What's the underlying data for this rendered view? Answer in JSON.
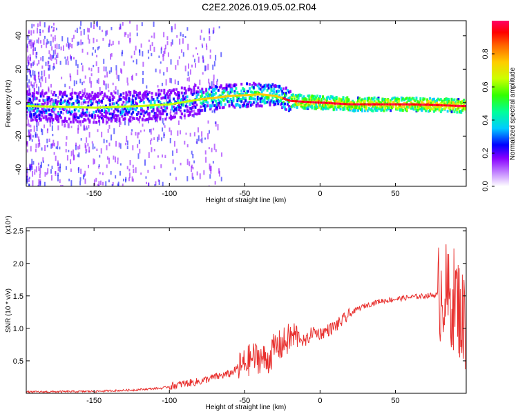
{
  "title": "C2E2.2026.019.05.02.R04",
  "colors": {
    "signal": "#e8302e",
    "axis": "#000000",
    "colormap": [
      "#cc99ff",
      "#8800ff",
      "#0000ff",
      "#00ccff",
      "#00ff99",
      "#33ff00",
      "#ccff00",
      "#ffcc00",
      "#ff6600",
      "#ff0000",
      "#ff0055"
    ]
  },
  "chart_data": [
    {
      "type": "heatmap",
      "xlabel": "Height of straight line (km)",
      "ylabel": "Frequency (Hz)",
      "xlim": [
        -195,
        97
      ],
      "ylim": [
        -50,
        49
      ],
      "xticks": [
        -150,
        -100,
        -50,
        0,
        50
      ],
      "yticks": [
        -40,
        -20,
        0,
        20,
        40
      ],
      "colorbar": {
        "label": "Normalized spectral amplitude",
        "range": [
          0.0,
          1.0
        ],
        "ticks": [
          "0.0",
          "0.2",
          "0.4",
          "0.6",
          "0.8"
        ]
      },
      "ridge": [
        [
          -195,
          -2
        ],
        [
          -150,
          -3
        ],
        [
          -120,
          -2
        ],
        [
          -100,
          -1
        ],
        [
          -80,
          2
        ],
        [
          -60,
          4
        ],
        [
          -40,
          5
        ],
        [
          -30,
          4
        ],
        [
          -20,
          1
        ],
        [
          0,
          0
        ],
        [
          20,
          -1
        ],
        [
          60,
          -1
        ],
        [
          95,
          -2
        ]
      ]
    },
    {
      "type": "line",
      "xlabel": "Height of straight line (km)",
      "ylabel": "SNR (10 * v/v)",
      "multiplier": "(x10⁴)",
      "xlim": [
        -195,
        97
      ],
      "ylim": [
        0,
        2.55
      ],
      "xticks": [
        -150,
        -100,
        -50,
        0,
        50
      ],
      "yticks": [
        "0.5",
        "1.0",
        "1.5",
        "2.0",
        "2.5"
      ],
      "series": [
        {
          "x": [
            -195,
            -150,
            -125,
            -105,
            -90,
            -80,
            -70,
            -60,
            -50,
            -45,
            -40,
            -35,
            -30,
            -25,
            -20,
            -15,
            -10,
            -5,
            0,
            5,
            10,
            15,
            20,
            25,
            30,
            40,
            50,
            60,
            70,
            78,
            82,
            86,
            90,
            95
          ],
          "y": [
            0.02,
            0.03,
            0.05,
            0.08,
            0.15,
            0.18,
            0.25,
            0.3,
            0.45,
            0.55,
            0.55,
            0.5,
            0.7,
            0.75,
            0.85,
            0.9,
            0.78,
            0.95,
            0.92,
            0.97,
            1.03,
            1.12,
            1.22,
            1.3,
            1.35,
            1.42,
            1.45,
            1.48,
            1.5,
            1.52,
            1.6,
            1.4,
            1.5,
            1.1
          ]
        }
      ]
    }
  ]
}
